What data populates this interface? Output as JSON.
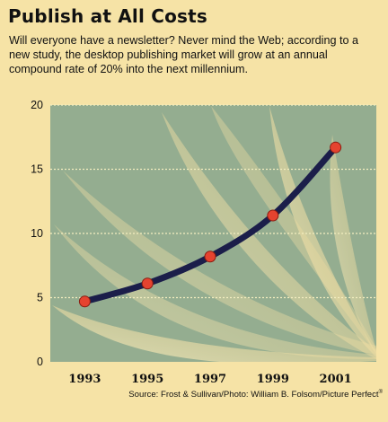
{
  "title": "Publish at All Costs",
  "subtitle": "Will everyone have a newsletter? Never mind the Web; according to a new study, the desktop publishing market will grow at an annual compound rate of 20% into the next millennium.",
  "source": "Source: Frost & Sullivan/Photo: William B. Folsom/Picture Perfect",
  "chart_data": {
    "type": "line",
    "x": [
      1993,
      1995,
      1997,
      1999,
      2001
    ],
    "values": [
      4.7,
      6.1,
      8.2,
      11.4,
      16.7
    ],
    "x_ticks": [
      "1993",
      "1995",
      "1997",
      "1999",
      "2001"
    ],
    "y_ticks": [
      "0",
      "5",
      "10",
      "15",
      "20"
    ],
    "xlim": [
      1991.9,
      2002.3
    ],
    "ylim": [
      0,
      20
    ],
    "grid": true,
    "legend": "none",
    "colors": {
      "line": "#1b1e4a",
      "marker": "#e5432f",
      "plot_background": "#94ad90",
      "grid": "#f3eec0"
    }
  }
}
